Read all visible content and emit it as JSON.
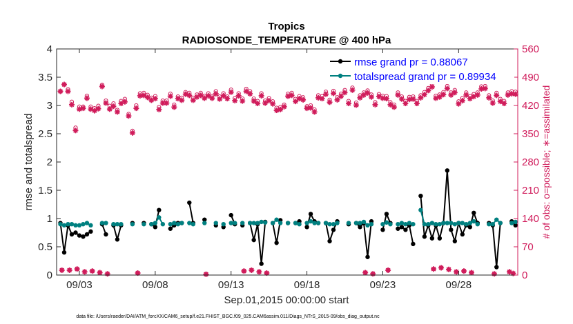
{
  "chart_data": {
    "type": "line",
    "title": "Tropics",
    "subtitle": "RADIOSONDE_TEMPERATURE @ 400 hPa",
    "xlabel": "Sep.01,2015 00:00:00 start",
    "ylabel": "rmse and totalspread",
    "ylabel_right": "# of obs: o=possible; ∗=assimilated",
    "xlim": [
      1.5,
      31.9
    ],
    "ylim": [
      0,
      4
    ],
    "ylim_right": [
      0,
      560
    ],
    "x_ticks": [
      3,
      8,
      13,
      18,
      23,
      28
    ],
    "x_tick_labels": [
      "09/03",
      "09/08",
      "09/13",
      "09/18",
      "09/23",
      "09/28"
    ],
    "y_ticks": [
      0,
      0.5,
      1,
      1.5,
      2,
      2.5,
      3,
      3.5,
      4
    ],
    "y_tick_labels": [
      "0",
      "0.5",
      "1",
      "1.5",
      "2",
      "2.5",
      "3",
      "3.5",
      "4"
    ],
    "y_ticks_right": [
      0,
      70,
      140,
      210,
      280,
      350,
      420,
      490,
      560
    ],
    "y_tick_labels_right": [
      "0",
      "70",
      "140",
      "210",
      "280",
      "350",
      "420",
      "490",
      "560"
    ],
    "x": [
      1.75,
      2,
      2.25,
      2.5,
      2.75,
      3,
      3.25,
      3.5,
      3.75,
      4,
      4.25,
      4.5,
      4.75,
      5,
      5.25,
      5.5,
      5.75,
      6,
      6.25,
      6.5,
      6.75,
      7,
      7.25,
      7.5,
      7.75,
      8,
      8.25,
      8.5,
      8.75,
      9,
      9.25,
      9.5,
      9.75,
      10,
      10.25,
      10.5,
      10.75,
      11,
      11.25,
      11.5,
      11.75,
      12,
      12.25,
      12.5,
      12.75,
      13,
      13.25,
      13.5,
      13.75,
      14,
      14.25,
      14.5,
      14.75,
      15,
      15.25,
      15.5,
      15.75,
      16,
      16.25,
      16.5,
      16.75,
      17,
      17.25,
      17.5,
      17.75,
      18,
      18.25,
      18.5,
      18.75,
      19,
      19.25,
      19.5,
      19.75,
      20,
      20.25,
      20.5,
      20.75,
      21,
      21.25,
      21.5,
      21.75,
      22,
      22.25,
      22.5,
      22.75,
      23,
      23.25,
      23.5,
      23.75,
      24,
      24.25,
      24.5,
      24.75,
      25,
      25.25,
      25.5,
      25.75,
      26,
      26.25,
      26.5,
      26.75,
      27,
      27.25,
      27.5,
      27.75,
      28,
      28.25,
      28.5,
      28.75,
      29,
      29.25,
      29.5,
      29.75,
      30,
      30.25,
      30.5,
      30.75,
      31,
      31.25,
      31.5,
      31.75
    ],
    "series": [
      {
        "name": "rmse grand pr = 0.88067",
        "axis": "left",
        "color": "#000000",
        "values": [
          0.92,
          0.4,
          0.88,
          0.72,
          0.75,
          0.7,
          0.68,
          0.72,
          0.77,
          null,
          null,
          0.9,
          0.72,
          null,
          0.88,
          0.63,
          0.88,
          null,
          null,
          0.92,
          null,
          null,
          0.92,
          null,
          0.9,
          0.85,
          1.15,
          null,
          null,
          0.82,
          0.88,
          0.92,
          0.92,
          null,
          1.28,
          0.92,
          null,
          null,
          0.98,
          null,
          null,
          0.88,
          null,
          0.85,
          null,
          1.06,
          0.9,
          null,
          0.88,
          null,
          0.92,
          0.62,
          0.9,
          0.2,
          0.94,
          null,
          0.92,
          0.57,
          0.97,
          null,
          0.92,
          null,
          0.92,
          0.95,
          null,
          0.85,
          1.08,
          0.95,
          0.92,
          null,
          0.92,
          0.6,
          0.8,
          0.95,
          null,
          null,
          0.9,
          null,
          0.92,
          0.85,
          0.92,
          0.32,
          0.95,
          null,
          null,
          0.8,
          1.08,
          0.92,
          null,
          0.82,
          0.85,
          0.8,
          0.88,
          0.55,
          null,
          1.4,
          0.68,
          0.88,
          0.65,
          0.88,
          0.65,
          0.92,
          1.85,
          0.8,
          0.6,
          0.92,
          0.72,
          0.88,
          0.85,
          1.1,
          0.92,
          null,
          null,
          0.92,
          0.88,
          0.14,
          0.92,
          null,
          null,
          0.95,
          0.88
        ]
      },
      {
        "name": "totalspread grand pr = 0.89934",
        "axis": "left",
        "color": "#008080",
        "values": [
          0.9,
          0.88,
          0.9,
          0.9,
          0.88,
          0.88,
          0.9,
          0.92,
          0.88,
          null,
          null,
          0.92,
          0.92,
          null,
          0.9,
          0.9,
          0.9,
          null,
          null,
          0.9,
          null,
          null,
          0.9,
          null,
          0.9,
          0.92,
          1.02,
          0.9,
          null,
          0.9,
          0.92,
          0.9,
          0.92,
          null,
          0.92,
          0.9,
          null,
          null,
          0.92,
          null,
          null,
          0.92,
          null,
          0.9,
          null,
          0.92,
          0.92,
          null,
          0.92,
          null,
          0.92,
          0.92,
          0.92,
          0.94,
          0.93,
          null,
          0.92,
          0.98,
          0.92,
          null,
          0.92,
          null,
          0.92,
          0.9,
          null,
          0.92,
          0.95,
          0.92,
          0.92,
          null,
          0.92,
          0.9,
          0.9,
          0.92,
          null,
          null,
          0.92,
          null,
          0.92,
          0.92,
          0.94,
          0.88,
          0.9,
          null,
          null,
          0.9,
          0.93,
          0.9,
          null,
          0.9,
          0.92,
          0.9,
          0.92,
          0.9,
          null,
          1.15,
          0.9,
          0.9,
          0.92,
          0.9,
          0.9,
          0.92,
          0.92,
          0.92,
          0.9,
          0.92,
          0.92,
          0.9,
          0.92,
          0.95,
          0.9,
          null,
          null,
          0.9,
          0.9,
          0.98,
          0.92,
          null,
          null,
          0.92,
          0.94
        ]
      },
      {
        "name": "possible observations",
        "axis": "right",
        "color": "#d01c5b",
        "marker": "o",
        "values": [
          455,
          472,
          460,
          429,
          365,
          417,
          417,
          444,
          417,
          413,
          419,
          471,
          432,
          419,
          425,
          409,
          431,
          436,
          399,
          357,
          420,
          450,
          451,
          446,
          439,
          443,
          416,
          432,
          432,
          449,
          422,
          442,
          439,
          453,
          451,
          439,
          447,
          451,
          444,
          450,
          443,
          455,
          442,
          450,
          442,
          459,
          438,
          450,
          437,
          461,
          455,
          437,
          431,
          450,
          432,
          438,
          430,
          414,
          416,
          422,
          449,
          451,
          436,
          443,
          440,
          418,
          420,
          410,
          445,
          443,
          454,
          434,
          456,
          440,
          449,
          458,
          431,
          464,
          427,
          445,
          452,
          457,
          447,
          428,
          448,
          444,
          443,
          428,
          422,
          452,
          442,
          431,
          441,
          442,
          431,
          445,
          453,
          463,
          472,
          444,
          447,
          453,
          468,
          452,
          458,
          430,
          438,
          452,
          443,
          448,
          452,
          467,
          468,
          445,
          432,
          451,
          436,
          431,
          452,
          455,
          454
        ]
      },
      {
        "name": "assimilated observations",
        "axis": "right",
        "color": "#d01c5b",
        "marker": "*",
        "values": [
          455,
          472,
          455,
          422,
          358,
          411,
          413,
          438,
          411,
          407,
          412,
          467,
          426,
          411,
          418,
          404,
          425,
          429,
          394,
          352,
          413,
          444,
          445,
          440,
          433,
          437,
          410,
          426,
          426,
          443,
          416,
          437,
          433,
          448,
          445,
          433,
          441,
          445,
          438,
          444,
          438,
          449,
          436,
          444,
          437,
          453,
          432,
          444,
          431,
          455,
          449,
          431,
          425,
          444,
          426,
          432,
          424,
          408,
          410,
          417,
          443,
          445,
          430,
          437,
          434,
          413,
          414,
          404,
          439,
          437,
          448,
          428,
          450,
          434,
          443,
          452,
          425,
          458,
          421,
          439,
          446,
          451,
          441,
          422,
          442,
          438,
          437,
          422,
          416,
          446,
          436,
          425,
          435,
          436,
          425,
          439,
          447,
          457,
          466,
          438,
          441,
          447,
          462,
          446,
          452,
          424,
          432,
          446,
          437,
          442,
          446,
          461,
          462,
          439,
          426,
          445,
          430,
          425,
          446,
          449,
          448
        ]
      }
    ],
    "counts_near_zero": [
      {
        "x": 1.85,
        "v": 12
      },
      {
        "x": 2.35,
        "v": 12
      },
      {
        "x": 2.85,
        "v": 15
      },
      {
        "x": 3.35,
        "v": 8
      },
      {
        "x": 3.85,
        "v": 10
      },
      {
        "x": 4.35,
        "v": 6
      },
      {
        "x": 4.85,
        "v": 3
      },
      {
        "x": 6.85,
        "v": 5
      },
      {
        "x": 11.35,
        "v": 2
      },
      {
        "x": 13.85,
        "v": 10
      },
      {
        "x": 14.35,
        "v": 12
      },
      {
        "x": 14.85,
        "v": 8
      },
      {
        "x": 15.35,
        "v": 5
      },
      {
        "x": 21.85,
        "v": 6
      },
      {
        "x": 22.35,
        "v": 3
      },
      {
        "x": 23.35,
        "v": 12
      },
      {
        "x": 26.35,
        "v": 15
      },
      {
        "x": 26.85,
        "v": 18
      },
      {
        "x": 27.35,
        "v": 14
      },
      {
        "x": 27.85,
        "v": 8
      },
      {
        "x": 28.35,
        "v": 10
      },
      {
        "x": 28.85,
        "v": 6
      },
      {
        "x": 30.35,
        "v": 3
      },
      {
        "x": 31.35,
        "v": 8
      },
      {
        "x": 31.6,
        "v": 4
      }
    ],
    "legend_position": "top-right",
    "grid": false
  },
  "footer": "data file: /Users/raeder/DAI/ATM_forcXX/CAM6_setup/f.e21.FHIST_BGC.f09_025.CAM6assim.011/Diags_NTrS_2015-09/obs_diag_output.nc",
  "colors": {
    "rmse": "#000000",
    "spread": "#008080",
    "obs": "#d01c5b",
    "legend_text": "#0000ff"
  }
}
